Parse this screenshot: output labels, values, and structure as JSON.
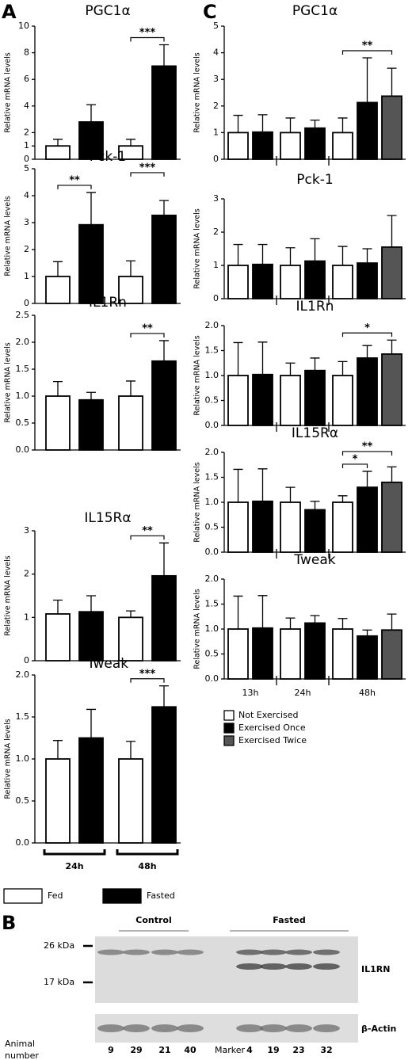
{
  "panel_letters": [
    "A",
    "B",
    "C"
  ],
  "chart_data": [
    {
      "type": "bar",
      "title": "PGC1α",
      "ylabel": "Relative mRNA levels",
      "ylim": [
        0,
        10
      ],
      "yticks": [
        0,
        1,
        2,
        4,
        6,
        8,
        10
      ],
      "categories": [
        null,
        null
      ],
      "series": [
        {
          "color": "#ffffff",
          "values": [
            1,
            1
          ],
          "errors": [
            0.5,
            0.5
          ]
        },
        {
          "color": "#000000",
          "values": [
            2.8,
            7.0
          ],
          "errors": [
            1.3,
            1.6
          ]
        }
      ],
      "annotations": [
        "***"
      ]
    },
    {
      "type": "bar",
      "title": "Pck-1",
      "ylabel": "Relative mRNA levels",
      "ylim": [
        0,
        5
      ],
      "yticks": [
        0,
        1,
        2,
        3,
        4,
        5
      ],
      "categories": [
        null,
        null
      ],
      "series": [
        {
          "color": "#ffffff",
          "values": [
            1,
            1
          ],
          "errors": [
            0.55,
            0.58
          ]
        },
        {
          "color": "#000000",
          "values": [
            2.92,
            3.27
          ],
          "errors": [
            1.2,
            0.55
          ]
        }
      ],
      "annotations": [
        "**",
        "***"
      ]
    },
    {
      "type": "bar",
      "title": "IL1Rn",
      "ylabel": "Relative mRNA levels",
      "ylim": [
        0,
        2.5
      ],
      "yticks": [
        {
          "value": 0,
          "label": "0.0"
        },
        0.5,
        {
          "value": 1,
          "label": "1.0"
        },
        1.5,
        {
          "value": 2,
          "label": "2.0"
        },
        2.5
      ],
      "categories": [
        null,
        null
      ],
      "series": [
        {
          "color": "#ffffff",
          "values": [
            1,
            1
          ],
          "errors": [
            0.27,
            0.28
          ]
        },
        {
          "color": "#000000",
          "values": [
            0.93,
            1.65
          ],
          "errors": [
            0.14,
            0.38
          ]
        }
      ],
      "annotations": [
        "**"
      ]
    },
    {
      "type": "bar",
      "title": "IL15Rα",
      "ylabel": "Relative mRNA levels",
      "ylim": [
        0,
        3
      ],
      "yticks": [
        0,
        1,
        2,
        3
      ],
      "categories": [
        null,
        null
      ],
      "series": [
        {
          "color": "#ffffff",
          "values": [
            1.08,
            1
          ],
          "errors": [
            0.32,
            0.15
          ]
        },
        {
          "color": "#000000",
          "values": [
            1.13,
            1.96
          ],
          "errors": [
            0.37,
            0.76
          ]
        }
      ],
      "annotations": [
        "**"
      ]
    },
    {
      "type": "bar",
      "title": "Tweak",
      "ylabel": "Relative mRNA levels",
      "ylim": [
        0,
        2
      ],
      "yticks": [
        {
          "value": 0,
          "label": "0.0"
        },
        0.5,
        {
          "value": 1,
          "label": "1.0"
        },
        1.5,
        {
          "value": 2,
          "label": "2.0"
        }
      ],
      "categories": [
        "24h",
        "48h"
      ],
      "series": [
        {
          "name": "Fed",
          "color": "#ffffff",
          "values": [
            1,
            1
          ],
          "errors": [
            0.22,
            0.21
          ]
        },
        {
          "name": "Fasted",
          "color": "#000000",
          "values": [
            1.25,
            1.62
          ],
          "errors": [
            0.34,
            0.25
          ]
        }
      ],
      "annotations": [
        "***"
      ]
    },
    {
      "type": "bar",
      "title": "PGC1α",
      "ylabel": "Relative mRNA levels",
      "ylim": [
        0,
        5
      ],
      "yticks": [
        0,
        1,
        2,
        3,
        4,
        5
      ],
      "categories": [
        null,
        null,
        null
      ],
      "series": [
        {
          "color": "#ffffff",
          "values": [
            1,
            1,
            1
          ],
          "errors": [
            0.65,
            0.55,
            0.55
          ]
        },
        {
          "color": "#000000",
          "values": [
            1.02,
            1.17,
            2.13
          ],
          "errors": [
            0.65,
            0.3,
            1.68
          ]
        },
        {
          "color": "#555555",
          "values": [
            null,
            null,
            2.37
          ],
          "errors": [
            null,
            null,
            1.05
          ]
        }
      ],
      "annotations": [
        "**"
      ]
    },
    {
      "type": "bar",
      "title": "Pck-1",
      "ylabel": "Relative mRNA levels",
      "ylim": [
        0,
        3
      ],
      "yticks": [
        0,
        1,
        2,
        3
      ],
      "categories": [
        null,
        null,
        null
      ],
      "series": [
        {
          "color": "#ffffff",
          "values": [
            1,
            1,
            1
          ],
          "errors": [
            0.63,
            0.53,
            0.57
          ]
        },
        {
          "color": "#000000",
          "values": [
            1.03,
            1.13,
            1.07
          ],
          "errors": [
            0.6,
            0.67,
            0.43
          ]
        },
        {
          "color": "#555555",
          "values": [
            null,
            null,
            1.55
          ],
          "errors": [
            null,
            null,
            0.95
          ]
        }
      ]
    },
    {
      "type": "bar",
      "title": "IL1Rn",
      "ylabel": "Relative mRNA levels",
      "ylim": [
        0,
        2
      ],
      "yticks": [
        {
          "value": 0,
          "label": "0.0"
        },
        0.5,
        {
          "value": 1,
          "label": "1.0"
        },
        1.5,
        {
          "value": 2,
          "label": "2.0"
        }
      ],
      "categories": [
        null,
        null,
        null
      ],
      "series": [
        {
          "color": "#ffffff",
          "values": [
            1,
            1,
            1
          ],
          "errors": [
            0.66,
            0.25,
            0.28
          ]
        },
        {
          "color": "#000000",
          "values": [
            1.02,
            1.1,
            1.35
          ],
          "errors": [
            0.65,
            0.25,
            0.25
          ]
        },
        {
          "color": "#555555",
          "values": [
            null,
            null,
            1.43
          ],
          "errors": [
            null,
            null,
            0.28
          ]
        }
      ],
      "annotations": [
        "*"
      ]
    },
    {
      "type": "bar",
      "title": "IL15Rα",
      "ylabel": "Relative mRNA levels",
      "ylim": [
        0,
        2
      ],
      "yticks": [
        {
          "value": 0,
          "label": "0.0"
        },
        0.5,
        {
          "value": 1,
          "label": "1.0"
        },
        1.5,
        {
          "value": 2,
          "label": "2.0"
        }
      ],
      "categories": [
        null,
        null,
        null
      ],
      "series": [
        {
          "color": "#ffffff",
          "values": [
            1,
            1,
            1
          ],
          "errors": [
            0.66,
            0.3,
            0.13
          ]
        },
        {
          "color": "#000000",
          "values": [
            1.02,
            0.85,
            1.3
          ],
          "errors": [
            0.65,
            0.17,
            0.32
          ]
        },
        {
          "color": "#555555",
          "values": [
            null,
            null,
            1.4
          ],
          "errors": [
            null,
            null,
            0.31
          ]
        }
      ],
      "annotations": [
        "*",
        "**"
      ]
    },
    {
      "type": "bar",
      "title": "Tweak",
      "ylabel": "Relative mRNA levels",
      "ylim": [
        0,
        2
      ],
      "yticks": [
        {
          "value": 0,
          "label": "0.0"
        },
        0.5,
        {
          "value": 1,
          "label": "1.0"
        },
        1.5,
        {
          "value": 2,
          "label": "2.0"
        }
      ],
      "categories": [
        "13h",
        "24h",
        "48h"
      ],
      "series": [
        {
          "name": "Not Exercised",
          "color": "#ffffff",
          "values": [
            1,
            1,
            1
          ],
          "errors": [
            0.66,
            0.22,
            0.21
          ]
        },
        {
          "name": "Exercised Once",
          "color": "#000000",
          "values": [
            1.02,
            1.12,
            0.86
          ],
          "errors": [
            0.65,
            0.15,
            0.12
          ]
        },
        {
          "name": "Exercised Twice",
          "color": "#555555",
          "values": [
            null,
            null,
            0.98
          ],
          "errors": [
            null,
            null,
            0.32
          ]
        }
      ]
    }
  ],
  "blot": {
    "groups": [
      "Control",
      "Fasted"
    ],
    "markers": [
      "26 kDa",
      "17 kDa"
    ],
    "bands": [
      "IL1RN",
      "β-Actin"
    ],
    "row_label": [
      "Animal",
      "number"
    ],
    "lanes": [
      "9",
      "29",
      "21",
      "40",
      "Marker",
      "4",
      "19",
      "23",
      "32"
    ]
  }
}
